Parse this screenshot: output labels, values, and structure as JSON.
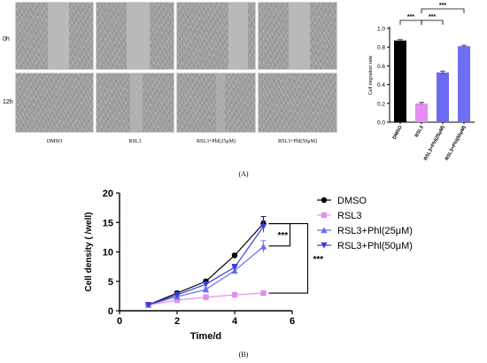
{
  "panel_a": {
    "row_labels": [
      "0h",
      "12h"
    ],
    "column_labels": [
      "DMSO",
      "RSL3",
      "RSL3+Phl(25μM)",
      "RSL3+Phl(50μM)"
    ],
    "label": "(A)"
  },
  "panel_b": {
    "label": "(B)"
  },
  "chart_data": [
    {
      "type": "bar",
      "ylabel": "Cell migration rate",
      "categories": [
        "DMSO",
        "RSL3",
        "RSL3+Phl(25μM)",
        "RSL3+Phl(50μM)"
      ],
      "values": [
        0.87,
        0.2,
        0.53,
        0.81
      ],
      "errors": [
        0.01,
        0.01,
        0.015,
        0.01
      ],
      "colors": [
        "#000000",
        "#e38ef0",
        "#6a6af0",
        "#6f6ff4"
      ],
      "ylim": [
        0,
        1.0
      ],
      "yticks": [
        "0.0",
        "0.2",
        "0.4",
        "0.6",
        "0.8",
        "1.0"
      ],
      "significance": [
        "***",
        "***",
        "***"
      ]
    },
    {
      "type": "line",
      "xlabel": "Time/d",
      "ylabel": "Cell density ( /well)",
      "xlim": [
        0,
        6
      ],
      "ylim": [
        0,
        20
      ],
      "xticks": [
        "0",
        "2",
        "4",
        "6"
      ],
      "yticks": [
        "0",
        "5",
        "10",
        "15",
        "20"
      ],
      "x": [
        1,
        2,
        3,
        4,
        5
      ],
      "series": [
        {
          "name": "DMSO",
          "values": [
            1.0,
            3.0,
            5.0,
            9.4,
            14.8
          ],
          "errors": [
            0.1,
            0.3,
            0.3,
            0.3,
            1.2
          ],
          "color": "#000000",
          "marker": "circle"
        },
        {
          "name": "RSL3",
          "values": [
            1.0,
            1.8,
            2.3,
            2.7,
            3.0
          ],
          "errors": [
            0.1,
            0.15,
            0.15,
            0.15,
            0.2
          ],
          "color": "#e38ef0",
          "marker": "square"
        },
        {
          "name": "RSL3+Phl(25μM)",
          "values": [
            1.0,
            2.4,
            3.6,
            6.8,
            10.9
          ],
          "errors": [
            0.1,
            0.3,
            0.3,
            0.6,
            1.0
          ],
          "color": "#6a6af0",
          "marker": "triangle-up"
        },
        {
          "name": "RSL3+Phl(50μM)",
          "values": [
            1.0,
            2.7,
            4.5,
            7.4,
            14.3
          ],
          "errors": [
            0.1,
            0.3,
            0.3,
            0.5,
            1.0
          ],
          "color": "#3b3bd9",
          "marker": "triangle-down"
        }
      ],
      "significance": [
        "***",
        "***"
      ]
    }
  ]
}
